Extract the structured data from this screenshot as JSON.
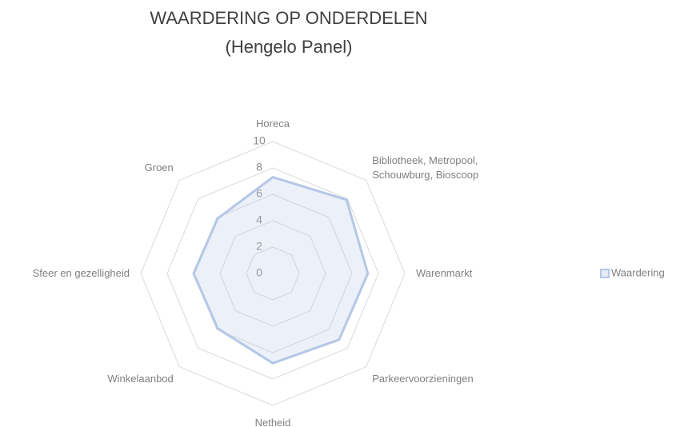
{
  "chart_data": {
    "type": "radar",
    "title": [
      "WAARDERING OP ONDERDELEN",
      "(Hengelo Panel)"
    ],
    "categories": [
      "Horeca",
      "Bibliotheek, Metropool, Schouwburg, Bioscoop",
      "Warenmarkt",
      "Parkeervoorzieningen",
      "Netheid",
      "Winkelaanbod",
      "Sfeer en gezelligheid",
      "Groen"
    ],
    "series": [
      {
        "name": "Waardering",
        "color": "#b4c7e7",
        "values": [
          7.3,
          7.9,
          7.2,
          7.1,
          6.8,
          5.9,
          6.0,
          5.9
        ]
      }
    ],
    "ylim": [
      0,
      10
    ],
    "yticks": [
      0,
      2,
      4,
      6,
      8,
      10
    ],
    "grid": true,
    "legend": "right"
  }
}
